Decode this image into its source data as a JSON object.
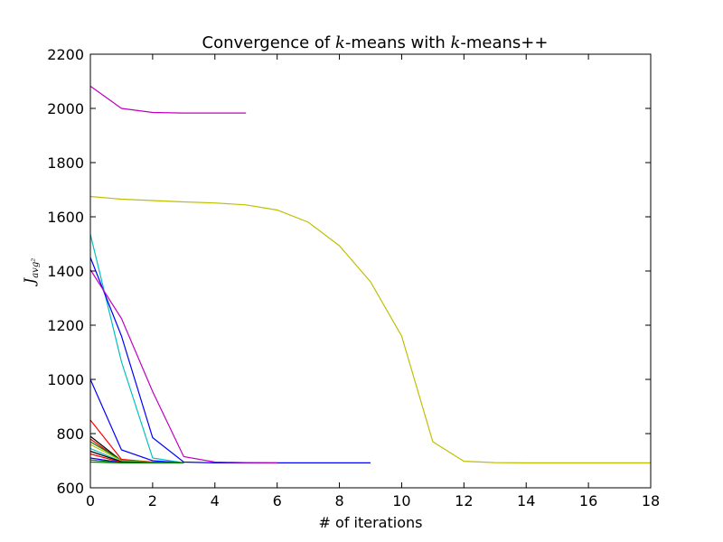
{
  "chart_data": {
    "type": "line",
    "title": {
      "prefix": "Convergence of ",
      "math1": "k",
      "middle": "-means with ",
      "math2": "k",
      "suffix": "-means++"
    },
    "xlabel": "# of iterations",
    "ylabel": {
      "main": "J",
      "sub": "avg²"
    },
    "xlim": [
      0,
      18
    ],
    "ylim": [
      600,
      2200
    ],
    "xticks": [
      0,
      2,
      4,
      6,
      8,
      10,
      12,
      14,
      16,
      18
    ],
    "yticks": [
      600,
      800,
      1000,
      1200,
      1400,
      1600,
      1800,
      2000,
      2200
    ],
    "grid": false,
    "series": [
      {
        "color": "#bf00bf",
        "x": [
          0,
          1,
          2,
          3,
          4,
          5
        ],
        "y": [
          2082,
          2000,
          1985,
          1983,
          1983,
          1983
        ]
      },
      {
        "color": "#bfbf00",
        "x": [
          0,
          1,
          2,
          3,
          4,
          5,
          6,
          7,
          8,
          9,
          10,
          11,
          12,
          13,
          14,
          15,
          16,
          17,
          18
        ],
        "y": [
          1675,
          1665,
          1660,
          1655,
          1651,
          1644,
          1625,
          1580,
          1493,
          1360,
          1160,
          770,
          698,
          693,
          692,
          692,
          692,
          692,
          692
        ]
      },
      {
        "color": "#00bfbf",
        "x": [
          0,
          1,
          2,
          3
        ],
        "y": [
          1535,
          1065,
          710,
          692
        ]
      },
      {
        "color": "#0000ff",
        "x": [
          0,
          1,
          2,
          3,
          4,
          5,
          6,
          7,
          8,
          9
        ],
        "y": [
          1450,
          1160,
          785,
          695,
          692,
          692,
          692,
          692,
          692,
          692
        ]
      },
      {
        "color": "#bf00bf",
        "x": [
          0,
          1,
          2,
          3,
          4,
          5,
          6
        ],
        "y": [
          1405,
          1225,
          955,
          715,
          695,
          693,
          692
        ]
      },
      {
        "color": "#0000ff",
        "x": [
          0,
          1,
          2,
          3
        ],
        "y": [
          1000,
          740,
          700,
          692
        ]
      },
      {
        "color": "#ff0000",
        "x": [
          0,
          1,
          2,
          3
        ],
        "y": [
          850,
          705,
          695,
          692
        ]
      },
      {
        "color": "#000000",
        "x": [
          0,
          1,
          2,
          3
        ],
        "y": [
          790,
          700,
          693,
          692
        ]
      },
      {
        "color": "#ff0000",
        "x": [
          0,
          1,
          2,
          3
        ],
        "y": [
          780,
          698,
          693,
          692
        ]
      },
      {
        "color": "#008000",
        "x": [
          0,
          1,
          2,
          3
        ],
        "y": [
          770,
          702,
          694,
          692
        ]
      },
      {
        "color": "#bfbf00",
        "x": [
          0,
          1,
          2,
          3
        ],
        "y": [
          760,
          700,
          694,
          692
        ]
      },
      {
        "color": "#00bfbf",
        "x": [
          0,
          1,
          2,
          3
        ],
        "y": [
          745,
          697,
          693,
          692
        ]
      },
      {
        "color": "#000000",
        "x": [
          0,
          1,
          2,
          3
        ],
        "y": [
          735,
          696,
          693,
          692
        ]
      },
      {
        "color": "#ff0000",
        "x": [
          0,
          1,
          2,
          3
        ],
        "y": [
          725,
          694,
          692,
          692
        ]
      },
      {
        "color": "#0000ff",
        "x": [
          0,
          1,
          2,
          3
        ],
        "y": [
          710,
          693,
          692,
          692
        ]
      },
      {
        "color": "#008000",
        "x": [
          0,
          1,
          2,
          3
        ],
        "y": [
          703,
          692,
          692,
          692
        ]
      },
      {
        "color": "#008000",
        "x": [
          0,
          1,
          2,
          3
        ],
        "y": [
          695,
          692,
          692,
          692
        ]
      }
    ]
  }
}
